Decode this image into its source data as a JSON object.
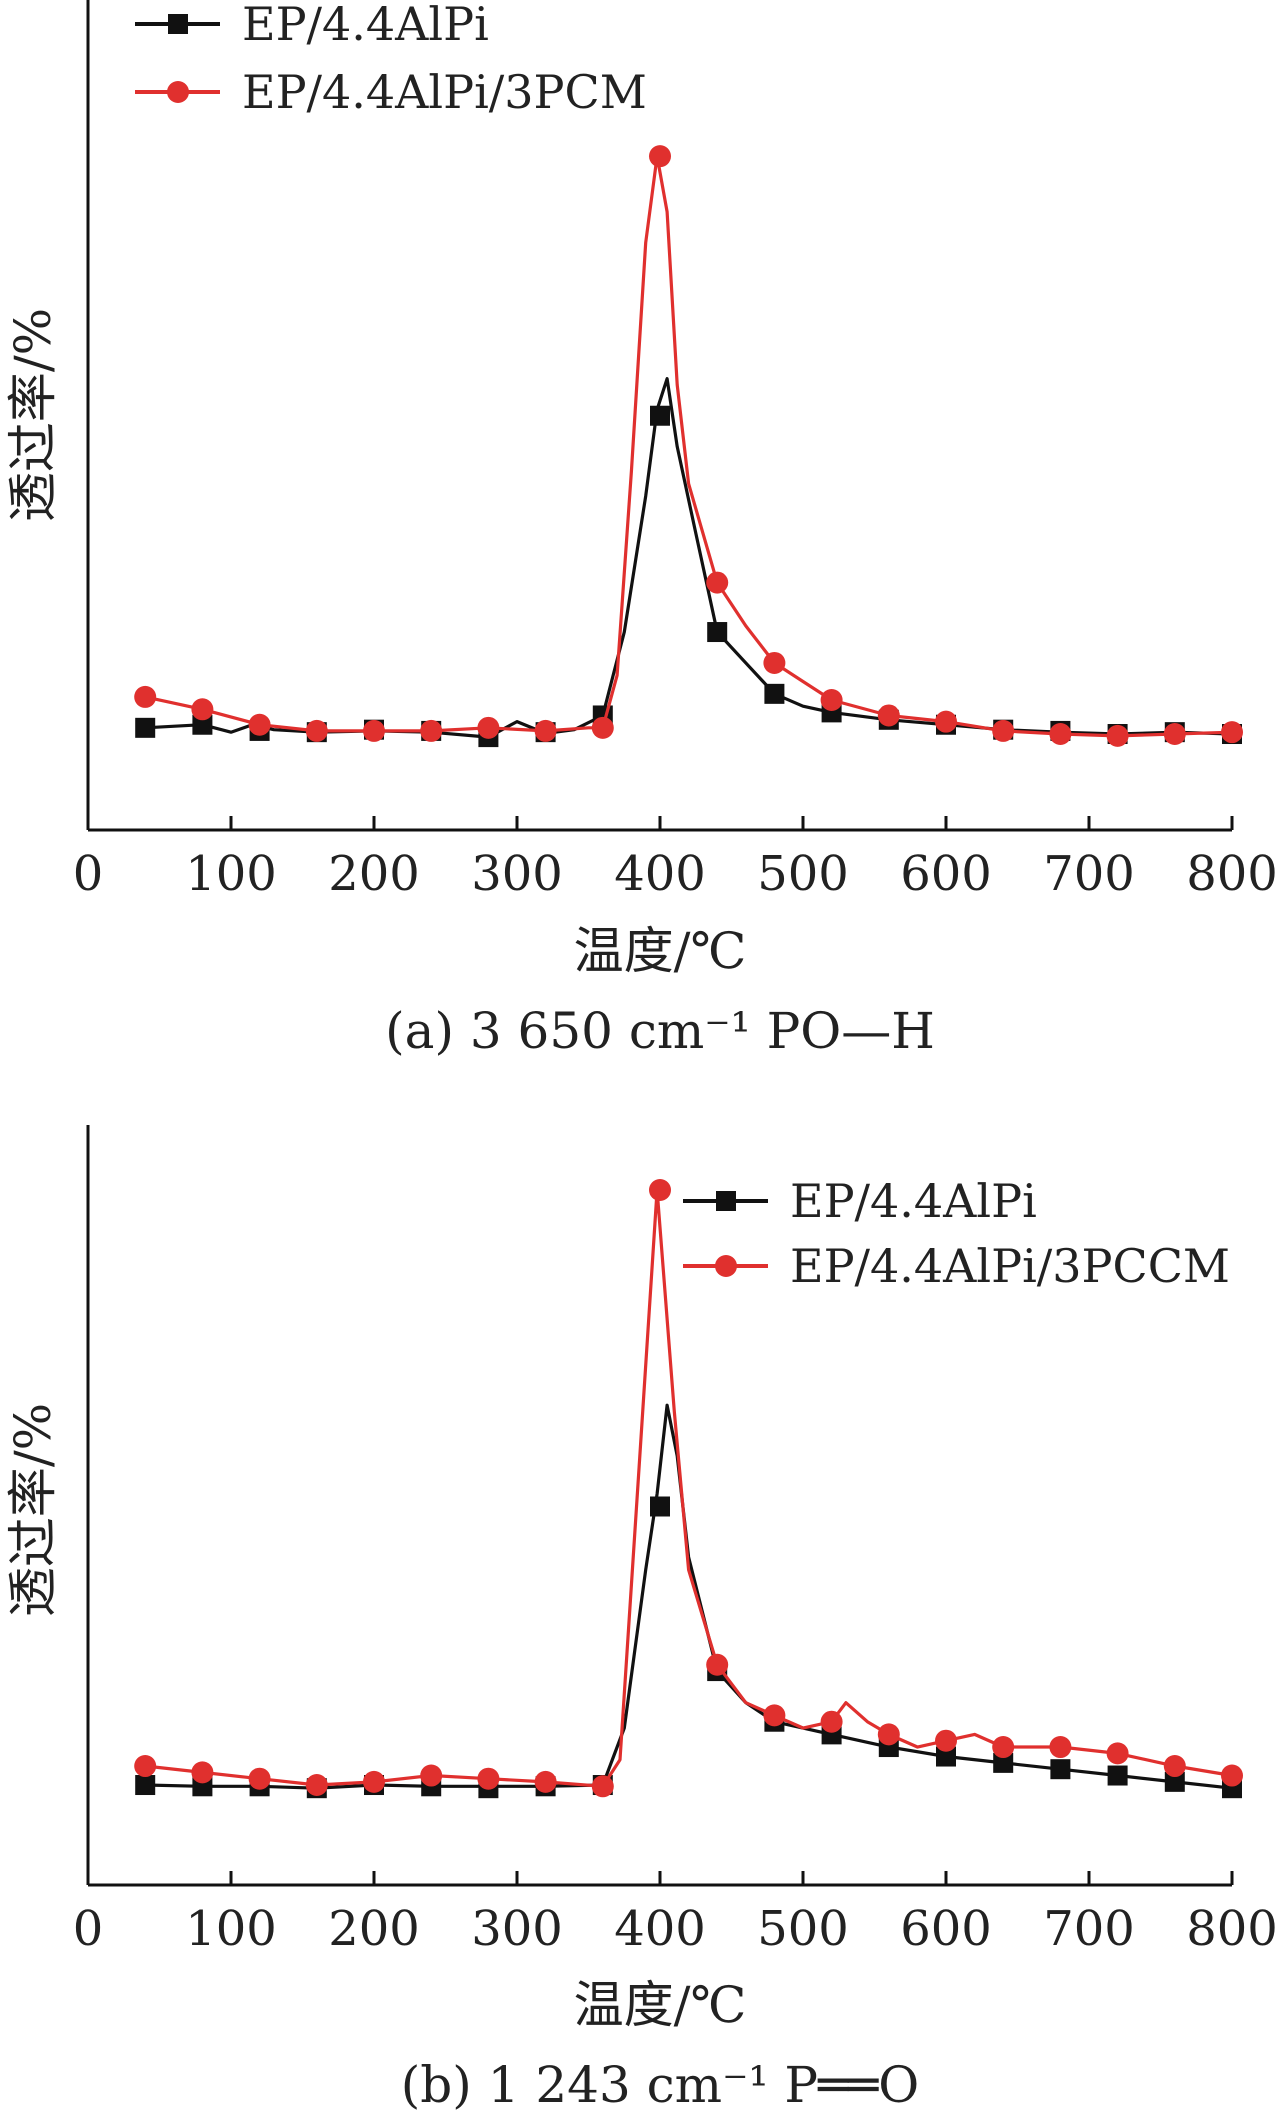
{
  "chart_data": [
    {
      "type": "line",
      "caption": "(a) 3 650 cm⁻¹ PO—H",
      "xlabel": "温度/℃",
      "ylabel": "透过率/%",
      "xlim": [
        0,
        800
      ],
      "xticks": [
        0,
        100,
        200,
        300,
        400,
        500,
        600,
        700,
        800
      ],
      "ylim": [
        0,
        100
      ],
      "yticks_shown": false,
      "grid": false,
      "legend_position": "top-left",
      "series": [
        {
          "name": "EP/4.4AlPi",
          "color": "#111111",
          "marker": "square",
          "x": [
            40,
            80,
            100,
            115,
            130,
            160,
            200,
            240,
            280,
            300,
            320,
            340,
            360,
            375,
            390,
            398,
            405,
            412,
            425,
            440,
            460,
            480,
            500,
            520,
            560,
            600,
            640,
            680,
            720,
            760,
            800
          ],
          "y": [
            6.5,
            7.0,
            5.8,
            7.0,
            6.2,
            5.8,
            6.0,
            5.8,
            5.0,
            7.5,
            5.6,
            6.2,
            8.5,
            22,
            44,
            58,
            63,
            52,
            38,
            22,
            17,
            12,
            10,
            9,
            7.8,
            7.0,
            6.2,
            5.8,
            5.5,
            5.8,
            5.5
          ],
          "markers_x": [
            40,
            80,
            120,
            160,
            200,
            240,
            280,
            320,
            360,
            400,
            440,
            480,
            520,
            560,
            600,
            640,
            680,
            720,
            760,
            800
          ],
          "markers_y": [
            6.5,
            7.0,
            6.0,
            5.8,
            6.2,
            6.0,
            5.0,
            5.8,
            8.5,
            57,
            22,
            12,
            9,
            7.8,
            7.0,
            6.2,
            6.0,
            5.5,
            5.8,
            5.5
          ]
        },
        {
          "name": "EP/4.4AlPi/3PCM",
          "color": "#e0302e",
          "marker": "circle",
          "x": [
            40,
            80,
            120,
            160,
            200,
            240,
            280,
            320,
            350,
            360,
            370,
            380,
            390,
            398,
            405,
            412,
            420,
            440,
            460,
            480,
            500,
            520,
            560,
            600,
            640,
            680,
            720,
            760,
            800
          ],
          "y": [
            11.5,
            9.5,
            7.0,
            6.0,
            6.0,
            6.0,
            6.5,
            6.0,
            6.5,
            6.5,
            15,
            48,
            85,
            99,
            90,
            62,
            46,
            30,
            23,
            17,
            14,
            11,
            8.5,
            7.5,
            6.0,
            5.5,
            5.2,
            5.5,
            5.8
          ],
          "markers_x": [
            40,
            80,
            120,
            160,
            200,
            240,
            280,
            320,
            360,
            400,
            440,
            480,
            520,
            560,
            600,
            640,
            680,
            720,
            760,
            800
          ],
          "markers_y": [
            11.5,
            9.5,
            7.0,
            6.0,
            6.0,
            6.0,
            6.5,
            6.0,
            6.5,
            99,
            30,
            17,
            11,
            8.5,
            7.5,
            6.0,
            5.5,
            5.2,
            5.5,
            5.8
          ]
        }
      ]
    },
    {
      "type": "line",
      "caption": "(b) 1 243 cm⁻¹ P══O",
      "xlabel": "温度/℃",
      "ylabel": "透过率/%",
      "xlim": [
        0,
        800
      ],
      "xticks": [
        0,
        100,
        200,
        300,
        400,
        500,
        600,
        700,
        800
      ],
      "ylim": [
        0,
        100
      ],
      "yticks_shown": false,
      "grid": false,
      "legend_position": "top-right",
      "series": [
        {
          "name": "EP/4.4AlPi",
          "color": "#111111",
          "marker": "square",
          "x": [
            40,
            80,
            120,
            160,
            200,
            240,
            280,
            320,
            360,
            375,
            390,
            398,
            405,
            412,
            420,
            440,
            460,
            480,
            520,
            560,
            600,
            640,
            680,
            720,
            760,
            800
          ],
          "y": [
            6.0,
            5.8,
            5.8,
            5.5,
            6.0,
            5.8,
            5.8,
            5.8,
            6.0,
            15,
            40,
            52,
            66,
            58,
            42,
            24,
            19,
            16,
            14,
            12,
            10.5,
            9.5,
            8.5,
            7.5,
            6.5,
            5.5
          ],
          "markers_x": [
            40,
            80,
            120,
            160,
            200,
            240,
            280,
            320,
            360,
            400,
            440,
            480,
            520,
            560,
            600,
            640,
            680,
            720,
            760,
            800
          ],
          "markers_y": [
            6.0,
            5.8,
            5.8,
            5.5,
            6.0,
            5.8,
            5.5,
            5.8,
            6.0,
            50,
            24,
            16,
            14,
            12,
            10.5,
            9.5,
            8.5,
            7.5,
            6.5,
            5.5
          ]
        },
        {
          "name": "EP/4.4AlPi/3PCCM",
          "color": "#e0302e",
          "marker": "circle",
          "x": [
            40,
            80,
            120,
            160,
            200,
            240,
            280,
            320,
            360,
            372,
            385,
            398,
            410,
            420,
            440,
            460,
            480,
            500,
            520,
            530,
            545,
            560,
            580,
            600,
            620,
            640,
            680,
            720,
            760,
            800
          ],
          "y": [
            9.0,
            8.0,
            7.0,
            6.0,
            6.5,
            7.5,
            7.0,
            6.5,
            5.8,
            10,
            55,
            100,
            65,
            40,
            25,
            19,
            17,
            15,
            16,
            19,
            16,
            14,
            12,
            13,
            14,
            12,
            12,
            11,
            9.0,
            7.5
          ],
          "markers_x": [
            40,
            80,
            120,
            160,
            200,
            240,
            280,
            320,
            360,
            400,
            440,
            480,
            520,
            560,
            600,
            640,
            680,
            720,
            760,
            800
          ],
          "markers_y": [
            9.0,
            8.0,
            7.0,
            6.0,
            6.5,
            7.5,
            7.0,
            6.5,
            5.8,
            100,
            25,
            17,
            16,
            14,
            13,
            12,
            12,
            11,
            9.0,
            7.5
          ]
        }
      ]
    }
  ]
}
